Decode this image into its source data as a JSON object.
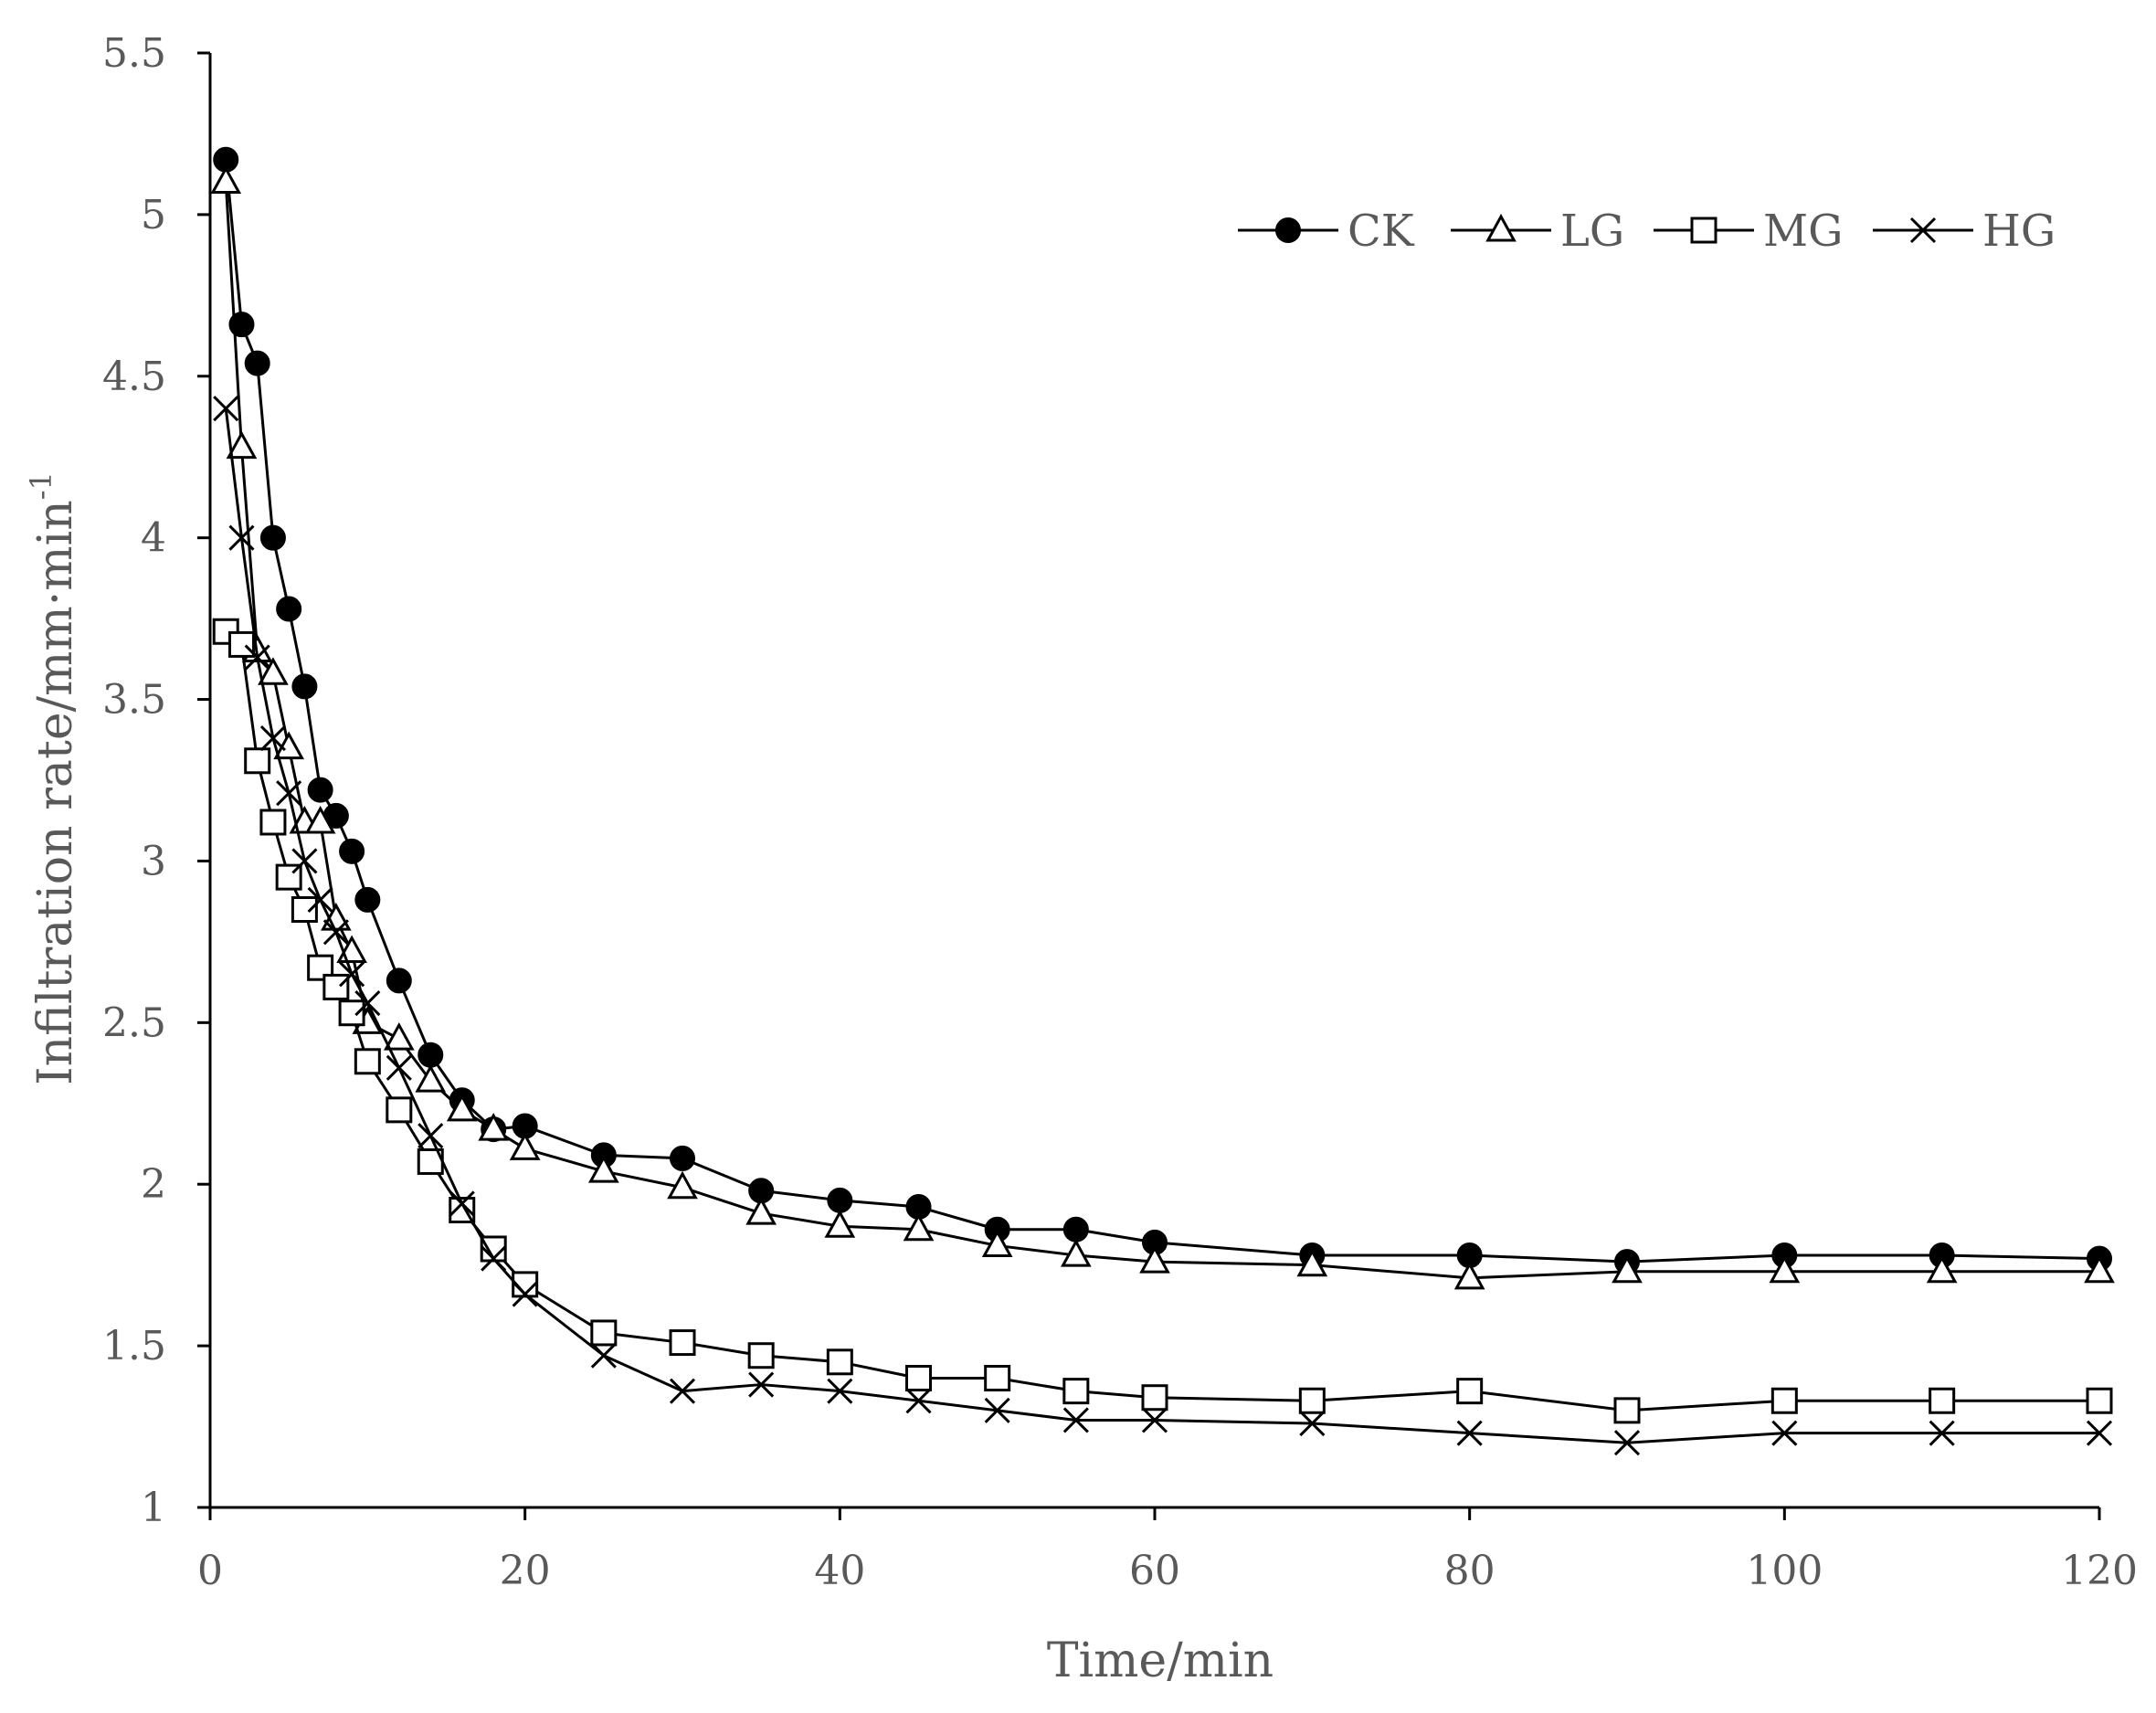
{
  "chart_data": {
    "type": "line",
    "title": "",
    "xlabel": "Time/min",
    "ylabel": "Infiltration rate/mm·min",
    "ylabel_superscript": "-1",
    "xlim": [
      0,
      120
    ],
    "ylim": [
      1,
      5.5
    ],
    "x_ticks": [
      "0",
      "20",
      "40",
      "60",
      "80",
      "100",
      "120"
    ],
    "y_ticks": [
      "1",
      "1.5",
      "2",
      "2.5",
      "3",
      "3.5",
      "4",
      "4.5",
      "5",
      "5.5"
    ],
    "grid": false,
    "legend_position": "top-right",
    "x": [
      1,
      2,
      3,
      4,
      5,
      6,
      7,
      8,
      9,
      10,
      12,
      14,
      16,
      18,
      20,
      25,
      30,
      35,
      40,
      45,
      50,
      55,
      60,
      70,
      80,
      90,
      100,
      110,
      120
    ],
    "series": [
      {
        "name": "CK",
        "marker": "filled-circle",
        "values": [
          5.17,
          4.66,
          4.54,
          4.0,
          3.78,
          3.54,
          3.22,
          3.14,
          3.03,
          2.88,
          2.63,
          2.4,
          2.26,
          2.17,
          2.18,
          2.09,
          2.08,
          1.98,
          1.95,
          1.93,
          1.86,
          1.86,
          1.82,
          1.78,
          1.78,
          1.76,
          1.78,
          1.78,
          1.77
        ]
      },
      {
        "name": "LG",
        "marker": "open-triangle",
        "values": [
          5.1,
          4.28,
          3.65,
          3.58,
          3.35,
          3.12,
          3.12,
          2.82,
          2.72,
          2.5,
          2.45,
          2.32,
          2.23,
          2.17,
          2.11,
          2.04,
          1.99,
          1.91,
          1.87,
          1.86,
          1.81,
          1.78,
          1.76,
          1.75,
          1.71,
          1.73,
          1.73,
          1.73,
          1.73
        ]
      },
      {
        "name": "MG",
        "marker": "open-square",
        "values": [
          3.71,
          3.67,
          3.31,
          3.12,
          2.95,
          2.85,
          2.67,
          2.61,
          2.53,
          2.38,
          2.23,
          2.07,
          1.92,
          1.8,
          1.69,
          1.54,
          1.51,
          1.47,
          1.45,
          1.4,
          1.4,
          1.36,
          1.34,
          1.33,
          1.36,
          1.3,
          1.33,
          1.33,
          1.33
        ]
      },
      {
        "name": "HG",
        "marker": "x",
        "values": [
          4.4,
          4.0,
          3.63,
          3.38,
          3.21,
          3.0,
          2.88,
          2.78,
          2.65,
          2.56,
          2.36,
          2.15,
          1.94,
          1.77,
          1.66,
          1.47,
          1.36,
          1.38,
          1.36,
          1.33,
          1.3,
          1.27,
          1.27,
          1.26,
          1.23,
          1.2,
          1.23,
          1.23,
          1.23
        ]
      }
    ],
    "colors": {
      "line": "#000000",
      "axis": "#000000",
      "text": "#595959"
    }
  }
}
